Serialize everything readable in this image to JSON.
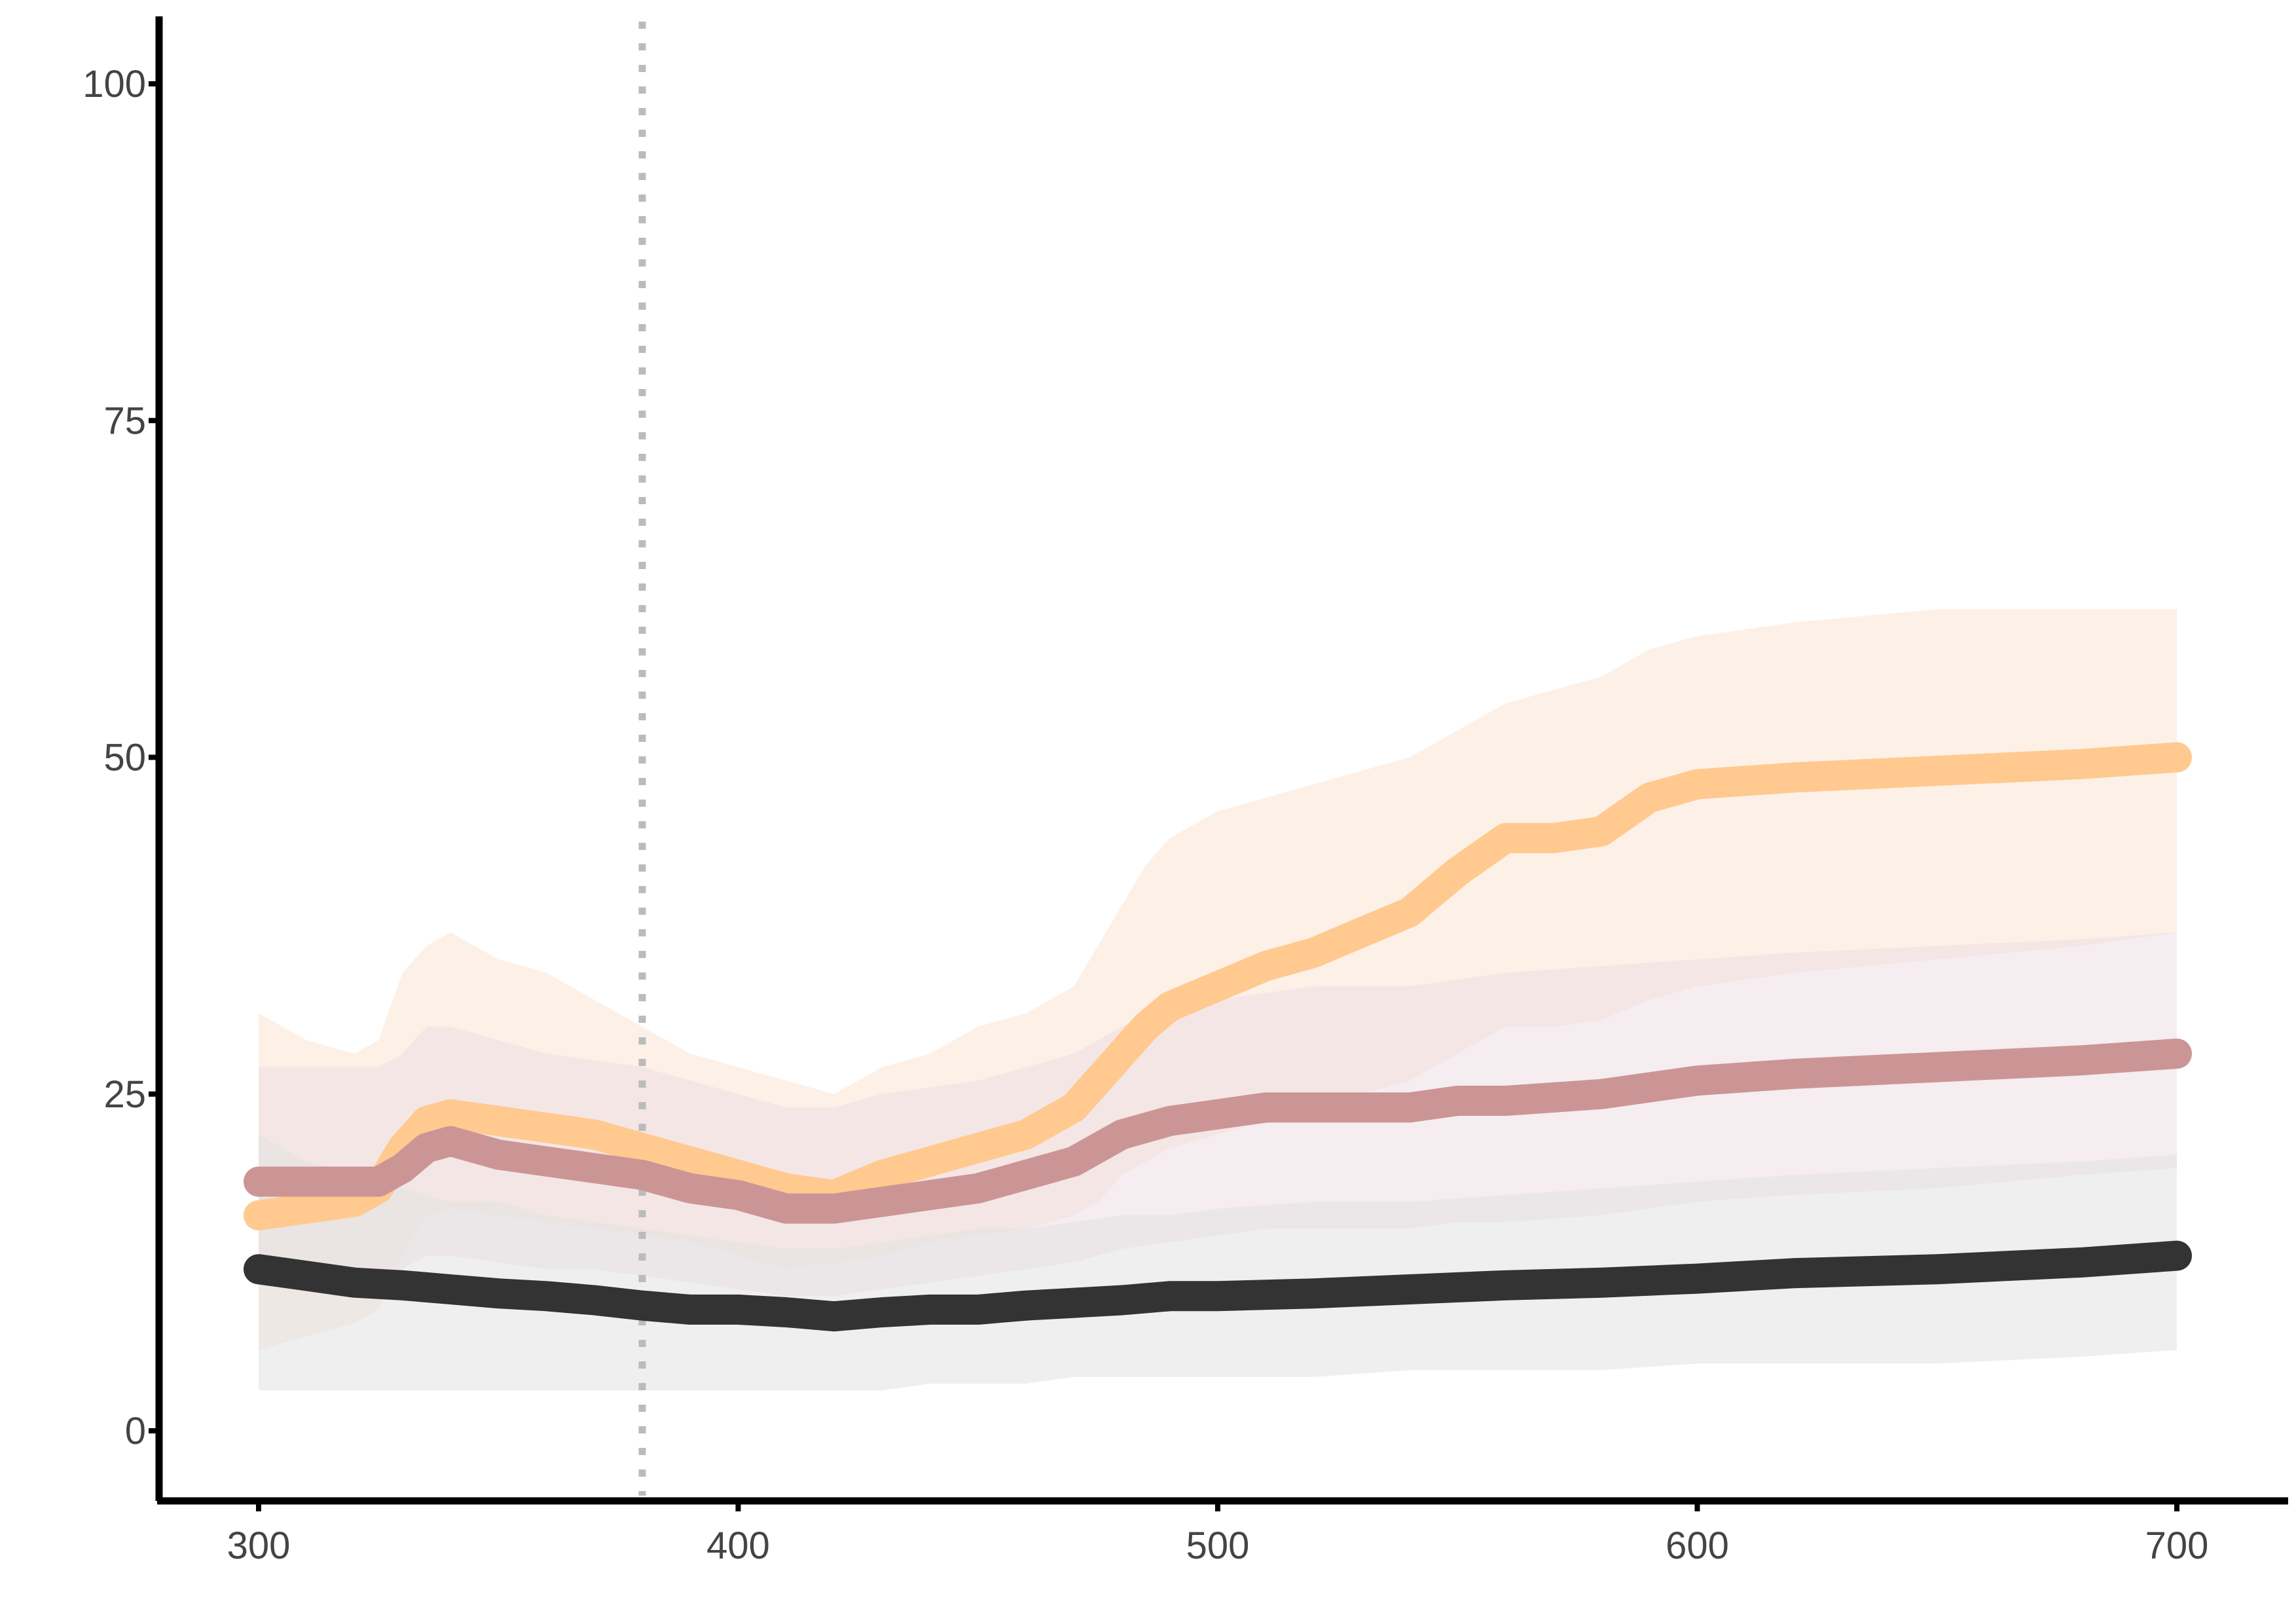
{
  "chart_data": {
    "type": "line",
    "title": "",
    "xlabel": "",
    "ylabel": "",
    "xlim": [
      280,
      705
    ],
    "ylim": [
      -5,
      105
    ],
    "x_ticks": [
      300,
      400,
      500,
      600,
      700
    ],
    "x_tick_labels": [
      "300",
      "400",
      "500",
      "600",
      "700"
    ],
    "y_ticks": [
      0,
      25,
      50,
      75,
      100
    ],
    "y_tick_labels": [
      "0",
      "25",
      "50",
      "75",
      "100"
    ],
    "grid": false,
    "legend": "none",
    "reference_line": {
      "x": 380,
      "style": "dotted",
      "color": "#bbbbbb"
    },
    "series": [
      {
        "color": "#ffc98f",
        "band_color": "#fbe3d2",
        "x": [
          300,
          310,
          320,
          325,
          330,
          335,
          340,
          350,
          360,
          370,
          380,
          390,
          400,
          410,
          420,
          430,
          440,
          450,
          460,
          470,
          475,
          480,
          485,
          490,
          500,
          510,
          520,
          530,
          540,
          550,
          560,
          570,
          580,
          590,
          600,
          620,
          650,
          680,
          700
        ],
        "y": [
          16,
          16.5,
          17,
          18,
          21,
          23,
          23.5,
          23,
          22.5,
          22,
          21,
          20,
          19,
          18,
          17.5,
          19,
          20,
          21,
          22,
          24,
          26,
          28,
          30,
          31.5,
          33,
          34.5,
          35.5,
          37,
          38.5,
          41.5,
          44,
          44,
          44.5,
          47,
          48,
          48.5,
          49,
          49.5,
          50
        ],
        "lower": [
          6,
          7,
          8,
          9,
          13,
          16,
          16.5,
          16,
          15.5,
          15,
          14.5,
          14,
          13,
          12,
          12.5,
          13,
          14,
          14.5,
          15,
          16,
          17,
          19,
          20,
          21,
          22,
          23,
          24,
          25,
          26,
          28,
          30,
          30,
          30.5,
          32,
          33,
          34,
          35,
          36,
          37
        ],
        "upper": [
          31,
          29,
          28,
          29,
          34,
          36,
          37,
          35,
          34,
          32,
          30,
          28,
          27,
          26,
          25,
          27,
          28,
          30,
          31,
          33,
          36,
          39,
          42,
          44,
          46,
          47,
          48,
          49,
          50,
          52,
          54,
          55,
          56,
          58,
          59,
          60,
          61,
          61,
          61
        ]
      },
      {
        "color": "#cc9595",
        "band_color": "#ecdfe1",
        "x": [
          300,
          310,
          320,
          325,
          330,
          335,
          340,
          350,
          360,
          370,
          380,
          390,
          400,
          410,
          420,
          430,
          440,
          450,
          460,
          470,
          480,
          490,
          500,
          510,
          520,
          530,
          540,
          550,
          560,
          580,
          600,
          620,
          650,
          680,
          700
        ],
        "y": [
          18.5,
          18.5,
          18.5,
          18.5,
          19.5,
          21,
          21.5,
          20.5,
          20,
          19.5,
          19,
          18,
          17.5,
          16.5,
          16.5,
          17,
          17.5,
          18,
          19,
          20,
          22,
          23,
          23.5,
          24,
          24,
          24,
          24,
          24.5,
          24.5,
          25,
          26,
          26.5,
          27,
          27.5,
          28
        ],
        "lower": [
          11,
          11,
          11,
          11,
          12,
          13,
          13,
          12.5,
          12,
          12,
          11.5,
          11,
          10.5,
          10,
          10,
          10.5,
          11,
          11.5,
          12,
          12.5,
          13.5,
          14,
          14.5,
          15,
          15,
          15,
          15,
          15.5,
          15.5,
          16,
          17,
          17.5,
          18,
          19,
          19.5
        ],
        "upper": [
          27,
          27,
          27,
          27,
          28,
          30,
          30,
          29,
          28,
          27.5,
          27,
          26,
          25,
          24,
          24,
          25,
          25.5,
          26,
          27,
          28,
          30,
          31.5,
          32,
          32.5,
          33,
          33,
          33,
          33.5,
          34,
          34.5,
          35,
          35.5,
          36,
          36.5,
          37
        ]
      },
      {
        "color": "#333333",
        "band_color": "#e2e2e2",
        "x": [
          300,
          310,
          320,
          330,
          340,
          350,
          360,
          370,
          380,
          390,
          400,
          410,
          420,
          430,
          440,
          450,
          460,
          470,
          480,
          490,
          500,
          520,
          540,
          560,
          580,
          600,
          620,
          650,
          680,
          700
        ],
        "y": [
          12,
          11.5,
          11,
          10.8,
          10.5,
          10.2,
          10,
          9.7,
          9.3,
          9,
          9,
          8.8,
          8.5,
          8.8,
          9,
          9,
          9.3,
          9.5,
          9.7,
          10,
          10,
          10.2,
          10.5,
          10.8,
          11,
          11.3,
          11.7,
          12,
          12.5,
          13
        ],
        "lower": [
          3,
          3,
          3,
          3,
          3,
          3,
          3,
          3,
          3,
          3,
          3,
          3,
          3,
          3,
          3.5,
          3.5,
          3.5,
          4,
          4,
          4,
          4,
          4,
          4.5,
          4.5,
          4.5,
          5,
          5,
          5,
          5.5,
          6
        ],
        "upper": [
          22,
          20,
          19,
          18,
          17,
          17,
          16,
          15.5,
          15,
          14.5,
          14,
          13.5,
          13.5,
          14,
          14.5,
          15,
          15,
          15.5,
          16,
          16,
          16.5,
          17,
          17,
          17.5,
          18,
          18.5,
          19,
          19.5,
          20,
          20.5
        ]
      }
    ]
  }
}
